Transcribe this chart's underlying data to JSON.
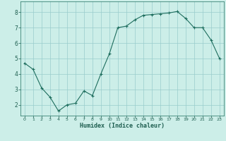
{
  "title": "",
  "xlabel": "Humidex (Indice chaleur)",
  "ylabel": "",
  "x_values": [
    0,
    1,
    2,
    3,
    4,
    5,
    6,
    7,
    8,
    9,
    10,
    11,
    12,
    13,
    14,
    15,
    16,
    17,
    18,
    19,
    20,
    21,
    22,
    23
  ],
  "y_values": [
    4.7,
    4.3,
    3.1,
    2.5,
    1.6,
    2.0,
    2.1,
    2.9,
    2.6,
    4.0,
    5.3,
    7.0,
    7.1,
    7.5,
    7.8,
    7.85,
    7.9,
    7.95,
    8.05,
    7.6,
    7.0,
    7.0,
    6.2,
    5.0
  ],
  "line_color": "#1e6e5e",
  "marker_color": "#1e6e5e",
  "bg_color": "#cceee8",
  "grid_color": "#99cccc",
  "axis_color": "#1e6e5e",
  "text_color": "#1e5e50",
  "xlim": [
    -0.5,
    23.5
  ],
  "ylim": [
    1.3,
    8.7
  ],
  "yticks": [
    2,
    3,
    4,
    5,
    6,
    7,
    8
  ],
  "xticks": [
    0,
    1,
    2,
    3,
    4,
    5,
    6,
    7,
    8,
    9,
    10,
    11,
    12,
    13,
    14,
    15,
    16,
    17,
    18,
    19,
    20,
    21,
    22,
    23
  ],
  "marker": "+"
}
